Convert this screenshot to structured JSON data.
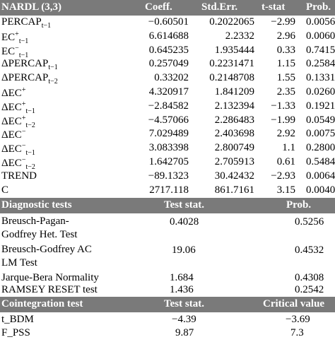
{
  "nardl": {
    "header": {
      "title": "NARDL (3,3)",
      "coeff": "Coeff.",
      "stderr": "Std.Err.",
      "tstat": "t-stat",
      "prob": "Prob."
    },
    "rows": [
      {
        "base": "PERCAP",
        "sub": "t−1",
        "sup": "",
        "sub2": "",
        "coeff": "−0.60501",
        "stderr": "0.2022065",
        "tstat": "−2.99",
        "prob": "0.0056"
      },
      {
        "base": "EC",
        "sub": "t−1",
        "sup": "+",
        "sub2": "",
        "coeff": "6.614688",
        "stderr": "2.2332",
        "tstat": "2.96",
        "prob": "0.0060"
      },
      {
        "base": "EC",
        "sub": "t−1",
        "sup": "−",
        "sub2": "",
        "coeff": "0.645235",
        "stderr": "1.935444",
        "tstat": "0.33",
        "prob": "0.7415"
      },
      {
        "base": "ΔPERCAP",
        "sub": "t−1",
        "sup": "",
        "sub2": "",
        "coeff": "0.257049",
        "stderr": "0.2231471",
        "tstat": "1.15",
        "prob": "0.2584"
      },
      {
        "base": "ΔPERCAP",
        "sub": "t−2",
        "sup": "",
        "sub2": "",
        "coeff": "0.33202",
        "stderr": "0.2148708",
        "tstat": "1.55",
        "prob": "0.1331"
      },
      {
        "base": "ΔEC",
        "sub": "",
        "sup": "+",
        "sub2": "",
        "coeff": "4.320917",
        "stderr": "1.841209",
        "tstat": "2.35",
        "prob": "0.0260"
      },
      {
        "base": "ΔEC",
        "sub": "t−1",
        "sup": "+",
        "sub2": "",
        "coeff": "−2.84582",
        "stderr": "2.132394",
        "tstat": "−1.33",
        "prob": "0.1921"
      },
      {
        "base": "ΔEC",
        "sub": "t−2",
        "sup": "+",
        "sub2": "",
        "coeff": "−4.57066",
        "stderr": "2.286483",
        "tstat": "−1.99",
        "prob": "0.0549"
      },
      {
        "base": "ΔEC",
        "sub": "",
        "sup": "−",
        "sub2": "",
        "coeff": "7.029489",
        "stderr": "2.403698",
        "tstat": "2.92",
        "prob": "0.0075"
      },
      {
        "base": "ΔEC",
        "sub": "t−1",
        "sup": "−",
        "sub2": "",
        "coeff": "3.083398",
        "stderr": "2.800749",
        "tstat": "1.1",
        "prob": "0.2800"
      },
      {
        "base": "ΔEC",
        "sub": "t−2",
        "sup": "−",
        "sub2": "",
        "coeff": "1.642705",
        "stderr": "2.705913",
        "tstat": "0.61",
        "prob": "0.5484"
      },
      {
        "base": "TREND",
        "sub": "",
        "sup": "",
        "sub2": "",
        "coeff": "−89.1323",
        "stderr": "30.42432",
        "tstat": "−2.93",
        "prob": "0.0064"
      },
      {
        "base": "C",
        "sub": "",
        "sup": "",
        "sub2": "",
        "coeff": "2717.118",
        "stderr": "861.7161",
        "tstat": "3.15",
        "prob": "0.0040"
      }
    ]
  },
  "diagnostic": {
    "header": {
      "title": "Diagnostic tests",
      "stat": "Test stat.",
      "prob": "Prob."
    },
    "rows": [
      {
        "line1": "Breusch-Pagan-",
        "line2": "Godfrey Het. Test",
        "stat": "0.4028",
        "prob": "0.5256"
      },
      {
        "line1": "Breusch-Godfrey AC",
        "line2": "LM Test",
        "stat": "19.06",
        "prob": "0.4532"
      },
      {
        "line1": "Jarque-Bera Normality",
        "line2": "",
        "stat": "1.684",
        "prob": "0.4308"
      },
      {
        "line1": "RAMSEY RESET test",
        "line2": "",
        "stat": "1.436",
        "prob": "0.2542"
      }
    ]
  },
  "cointegration": {
    "header": {
      "title": "Cointegration test",
      "stat": "Test stat.",
      "crit": "Critical value"
    },
    "rows": [
      {
        "name": "t_BDM",
        "stat": "−4.39",
        "crit": "−3.69"
      },
      {
        "name": "F_PSS",
        "stat": "9.87",
        "crit": "7.3"
      }
    ]
  },
  "colors": {
    "header_bg": "#7a7a7a",
    "header_text": "#ffffff"
  }
}
